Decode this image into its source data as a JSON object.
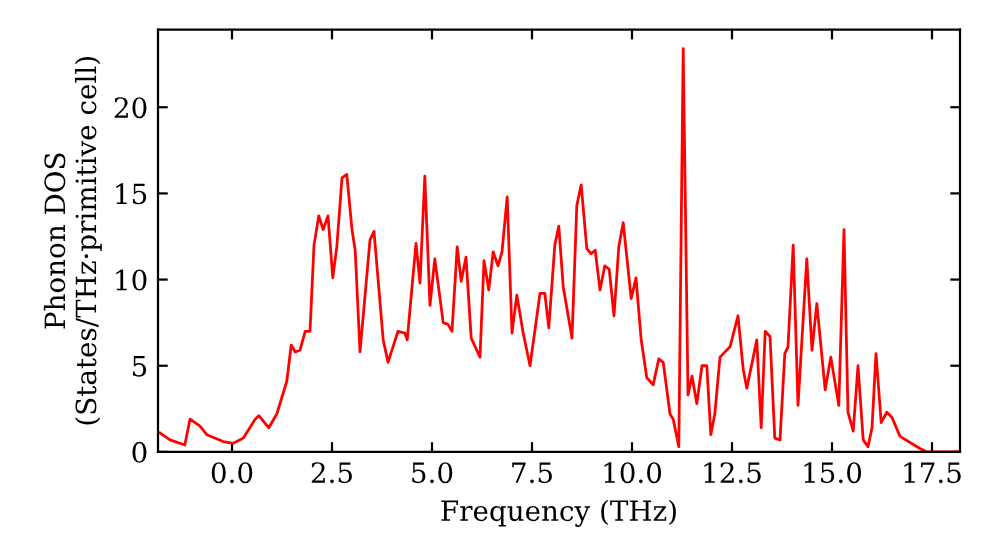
{
  "chart_data": {
    "type": "line",
    "xlabel": "Frequency (THz)",
    "ylabel": "Phonon DOS\n(States/THz·primitive cell)",
    "xlim": [
      -1.85,
      18.2
    ],
    "ylim": [
      0,
      24.5
    ],
    "xticks": [
      {
        "value": 0,
        "label": "0.0"
      },
      {
        "value": 2.5,
        "label": "2.5"
      },
      {
        "value": 5,
        "label": "5.0"
      },
      {
        "value": 7.5,
        "label": "7.5"
      },
      {
        "value": 10,
        "label": "10.0"
      },
      {
        "value": 12.5,
        "label": "12.5"
      },
      {
        "value": 15,
        "label": "15.0"
      },
      {
        "value": 17.5,
        "label": "17.5"
      }
    ],
    "yticks": [
      0,
      5,
      10,
      15,
      20
    ],
    "grid": false,
    "series": [
      {
        "color": "#ff0000",
        "x": [
          -1.8,
          -1.55,
          -1.18,
          -1.05,
          -0.8,
          -0.63,
          -0.22,
          0.03,
          0.28,
          0.58,
          0.67,
          0.92,
          1.12,
          1.37,
          1.48,
          1.58,
          1.7,
          1.83,
          1.95,
          2.05,
          2.17,
          2.28,
          2.4,
          2.52,
          2.62,
          2.75,
          2.87,
          3.0,
          3.08,
          3.2,
          3.45,
          3.55,
          3.78,
          3.9,
          4.15,
          4.32,
          4.38,
          4.6,
          4.7,
          4.82,
          4.95,
          5.07,
          5.28,
          5.4,
          5.5,
          5.63,
          5.73,
          5.85,
          5.98,
          6.2,
          6.3,
          6.42,
          6.53,
          6.65,
          6.75,
          6.88,
          7.0,
          7.12,
          7.28,
          7.45,
          7.7,
          7.82,
          7.92,
          8.07,
          8.17,
          8.28,
          8.5,
          8.62,
          8.73,
          8.87,
          8.98,
          9.08,
          9.2,
          9.32,
          9.43,
          9.55,
          9.67,
          9.78,
          9.98,
          10.1,
          10.23,
          10.37,
          10.53,
          10.67,
          10.78,
          10.95,
          11.03,
          11.17,
          11.28,
          11.4,
          11.5,
          11.62,
          11.75,
          11.87,
          11.97,
          12.07,
          12.2,
          12.45,
          12.65,
          12.78,
          12.87,
          13.12,
          13.23,
          13.33,
          13.45,
          13.57,
          13.7,
          13.82,
          13.9,
          14.03,
          14.15,
          14.37,
          14.5,
          14.62,
          14.83,
          14.97,
          15.17,
          15.3,
          15.4,
          15.53,
          15.65,
          15.78,
          15.9,
          16.0,
          16.1,
          16.23,
          16.37,
          16.5,
          16.7,
          17.2,
          17.37,
          18.2
        ],
        "values": [
          1.1,
          0.7,
          0.4,
          1.9,
          1.5,
          1.0,
          0.6,
          0.5,
          0.8,
          1.9,
          2.1,
          1.4,
          2.2,
          4.1,
          6.2,
          5.8,
          5.9,
          7.0,
          7.0,
          12.0,
          13.7,
          12.9,
          13.7,
          10.1,
          11.9,
          15.9,
          16.1,
          12.9,
          11.7,
          5.8,
          12.3,
          12.8,
          6.5,
          5.2,
          7.0,
          6.9,
          6.5,
          12.1,
          9.8,
          16.0,
          8.5,
          11.2,
          7.5,
          7.4,
          7.0,
          11.9,
          9.9,
          11.3,
          6.6,
          5.5,
          11.1,
          9.4,
          11.6,
          10.8,
          11.6,
          14.8,
          6.9,
          9.1,
          6.9,
          5.0,
          9.2,
          9.2,
          7.2,
          12.0,
          13.1,
          9.6,
          6.6,
          14.3,
          15.5,
          11.8,
          11.5,
          11.7,
          9.4,
          10.8,
          10.6,
          7.9,
          11.9,
          13.3,
          8.9,
          10.1,
          6.5,
          4.3,
          3.9,
          5.4,
          5.2,
          2.2,
          1.9,
          0.3,
          23.4,
          3.3,
          4.4,
          2.8,
          5.0,
          5.0,
          1.0,
          2.2,
          5.5,
          6.1,
          7.9,
          4.8,
          3.7,
          6.5,
          1.4,
          7.0,
          6.7,
          0.8,
          0.7,
          5.7,
          6.1,
          12.0,
          2.7,
          11.2,
          5.9,
          8.6,
          3.6,
          5.5,
          2.7,
          12.9,
          2.3,
          1.2,
          5.0,
          0.7,
          0.3,
          1.4,
          5.7,
          1.7,
          2.3,
          2.0,
          0.9,
          0.2,
          0.0,
          0.0
        ]
      }
    ]
  }
}
